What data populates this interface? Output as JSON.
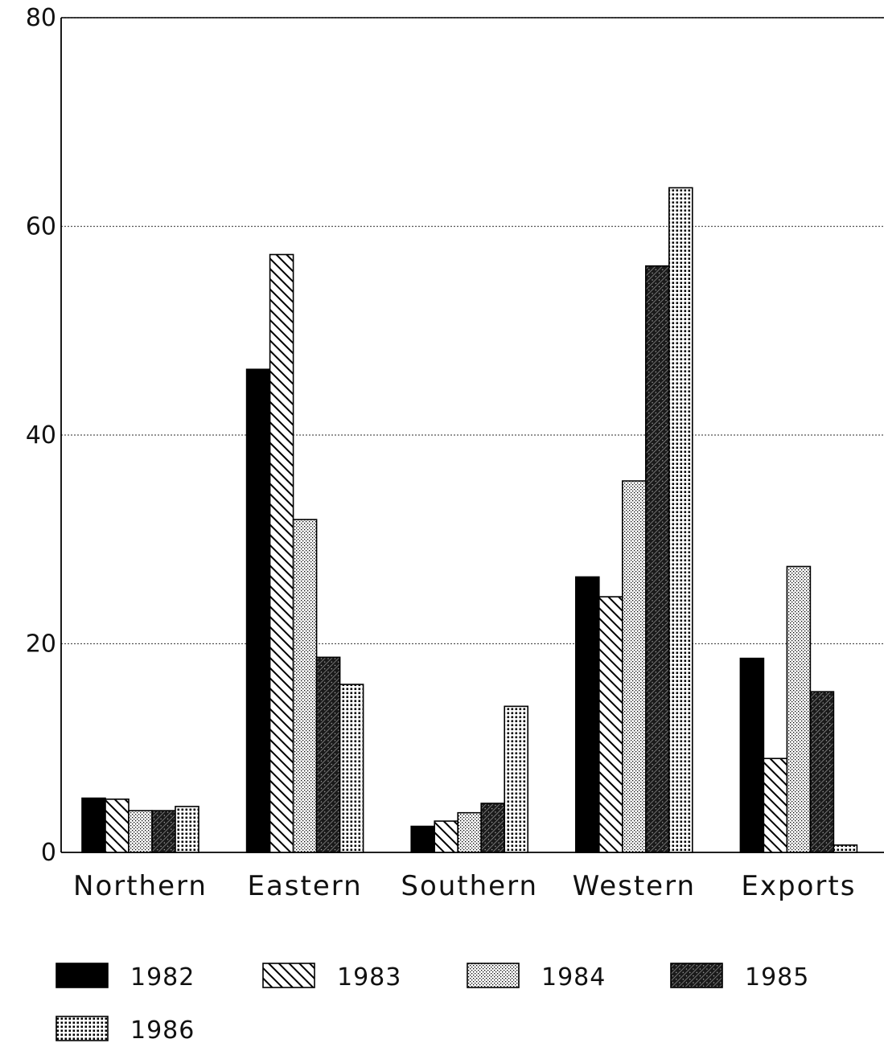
{
  "chart_data": {
    "type": "bar",
    "title": "",
    "xlabel": "",
    "ylabel": "",
    "ylim": [
      0,
      80
    ],
    "yticks": [
      "0",
      "20",
      "40",
      "60",
      "80"
    ],
    "grid": "horizontal dotted",
    "legend_position": "bottom",
    "categories": [
      "Northern",
      "Eastern",
      "Southern",
      "Western",
      "Exports"
    ],
    "series": [
      {
        "name": "1982",
        "pattern": "solid",
        "color": "#000000",
        "values": [
          5.2,
          46.3,
          2.5,
          26.4,
          18.6
        ]
      },
      {
        "name": "1983",
        "pattern": "diagonal-hatch",
        "color": "#000000",
        "values": [
          5.1,
          57.3,
          3.0,
          24.5,
          9.0
        ]
      },
      {
        "name": "1984",
        "pattern": "light-dots",
        "color": "#000000",
        "values": [
          4.0,
          31.9,
          3.8,
          35.6,
          27.4
        ]
      },
      {
        "name": "1985",
        "pattern": "dense-hatch",
        "color": "#000000",
        "values": [
          4.0,
          18.7,
          4.7,
          56.2,
          15.4
        ]
      },
      {
        "name": "1986",
        "pattern": "coarse-dots",
        "color": "#000000",
        "values": [
          4.4,
          16.1,
          14.0,
          63.7,
          0.7
        ]
      }
    ]
  }
}
